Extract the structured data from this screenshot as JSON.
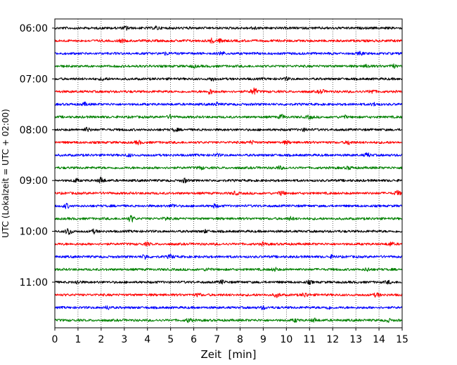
{
  "chart_data": {
    "type": "line",
    "subtype": "helicorder-seismogram",
    "xlabel": "Zeit  [min]",
    "ylabel": "UTC (Lokalzeit = UTC + 02:00)",
    "xlim": [
      0,
      15
    ],
    "x_ticks": [
      0,
      1,
      2,
      3,
      4,
      5,
      6,
      7,
      8,
      9,
      10,
      11,
      12,
      13,
      14,
      15
    ],
    "x_tick_labels": [
      "0",
      "1",
      "2",
      "3",
      "4",
      "5",
      "6",
      "7",
      "8",
      "9",
      "10",
      "11",
      "12",
      "13",
      "14",
      "15"
    ],
    "y_tick_labels": [
      "06:00",
      "07:00",
      "08:00",
      "09:00",
      "10:00",
      "11:00"
    ],
    "y_tick_row_index": [
      0,
      4,
      8,
      12,
      16,
      20
    ],
    "row_interval_minutes": 15,
    "first_row_time": "06:00",
    "vertical_grid": "dotted",
    "color_cycle": [
      "#000000",
      "#ff0000",
      "#0000ff",
      "#008000"
    ],
    "rows": [
      {
        "start": "06:00",
        "events": [
          [
            3.1,
            2.2
          ],
          [
            4.4,
            2.0
          ],
          [
            8.6,
            1.3
          ]
        ]
      },
      {
        "start": "06:15",
        "events": [
          [
            6.8,
            2.8
          ],
          [
            7.2,
            2.4
          ],
          [
            2.9,
            1.6
          ]
        ]
      },
      {
        "start": "06:30",
        "events": [
          [
            7.2,
            2.2
          ],
          [
            13.2,
            1.8
          ],
          [
            4.8,
            1.4
          ]
        ]
      },
      {
        "start": "06:45",
        "events": [
          [
            14.6,
            2.4
          ],
          [
            13.5,
            1.8
          ],
          [
            6.0,
            1.5
          ]
        ]
      },
      {
        "start": "07:00",
        "events": [
          [
            6.8,
            2.0
          ],
          [
            2.1,
            1.5
          ],
          [
            10.0,
            1.4
          ]
        ]
      },
      {
        "start": "07:15",
        "events": [
          [
            8.6,
            5.0
          ],
          [
            6.7,
            3.0
          ],
          [
            11.5,
            2.5
          ],
          [
            13.7,
            2.5
          ]
        ]
      },
      {
        "start": "07:30",
        "events": [
          [
            1.3,
            1.8
          ],
          [
            7.0,
            1.6
          ],
          [
            13.8,
            1.8
          ]
        ]
      },
      {
        "start": "07:45",
        "events": [
          [
            9.8,
            2.8
          ],
          [
            5.0,
            2.2
          ],
          [
            11.0,
            2.0
          ],
          [
            12.5,
            1.6
          ]
        ]
      },
      {
        "start": "08:00",
        "events": [
          [
            1.4,
            2.6
          ],
          [
            5.2,
            1.8
          ],
          [
            10.8,
            1.6
          ]
        ]
      },
      {
        "start": "08:15",
        "events": [
          [
            12.7,
            2.4
          ],
          [
            3.6,
            2.0
          ],
          [
            8.5,
            1.8
          ],
          [
            10.0,
            1.6
          ]
        ]
      },
      {
        "start": "08:30",
        "events": [
          [
            13.5,
            2.6
          ],
          [
            3.2,
            1.6
          ],
          [
            7.0,
            1.4
          ]
        ]
      },
      {
        "start": "08:45",
        "events": [
          [
            9.7,
            1.8
          ],
          [
            6.3,
            1.6
          ],
          [
            12.7,
            1.6
          ]
        ]
      },
      {
        "start": "09:00",
        "events": [
          [
            2.0,
            4.2
          ],
          [
            5.6,
            2.4
          ],
          [
            0.9,
            2.0
          ]
        ]
      },
      {
        "start": "09:15",
        "events": [
          [
            14.8,
            2.8
          ],
          [
            9.8,
            2.6
          ],
          [
            7.8,
            1.8
          ]
        ]
      },
      {
        "start": "09:30",
        "events": [
          [
            0.5,
            2.8
          ],
          [
            5.1,
            2.2
          ],
          [
            6.9,
            2.0
          ]
        ]
      },
      {
        "start": "09:45",
        "events": [
          [
            3.3,
            4.2
          ],
          [
            4.8,
            1.8
          ],
          [
            10.2,
            1.8
          ]
        ]
      },
      {
        "start": "10:00",
        "events": [
          [
            0.6,
            5.0
          ],
          [
            1.7,
            2.2
          ],
          [
            6.5,
            1.5
          ]
        ]
      },
      {
        "start": "10:15",
        "events": [
          [
            14.5,
            2.2
          ],
          [
            4.0,
            1.8
          ],
          [
            9.0,
            1.6
          ]
        ]
      },
      {
        "start": "10:30",
        "events": [
          [
            3.9,
            3.0
          ],
          [
            5.0,
            2.4
          ],
          [
            12.0,
            1.8
          ]
        ]
      },
      {
        "start": "10:45",
        "events": [
          [
            9.5,
            2.0
          ],
          [
            13.5,
            2.0
          ],
          [
            6.6,
            1.6
          ]
        ]
      },
      {
        "start": "11:00",
        "events": [
          [
            1.0,
            2.0
          ],
          [
            7.2,
            2.2
          ],
          [
            11.0,
            1.8
          ],
          [
            14.4,
            1.6
          ]
        ]
      },
      {
        "start": "11:15",
        "events": [
          [
            9.6,
            2.6
          ],
          [
            10.8,
            2.4
          ],
          [
            13.9,
            2.4
          ],
          [
            6.2,
            1.8
          ]
        ]
      },
      {
        "start": "11:30",
        "events": [
          [
            2.3,
            2.2
          ],
          [
            9.0,
            1.8
          ],
          [
            11.8,
            1.6
          ]
        ]
      },
      {
        "start": "11:45",
        "events": [
          [
            5.8,
            2.6
          ],
          [
            11.2,
            2.2
          ],
          [
            10.4,
            1.8
          ],
          [
            14.4,
            1.8
          ]
        ]
      }
    ]
  }
}
